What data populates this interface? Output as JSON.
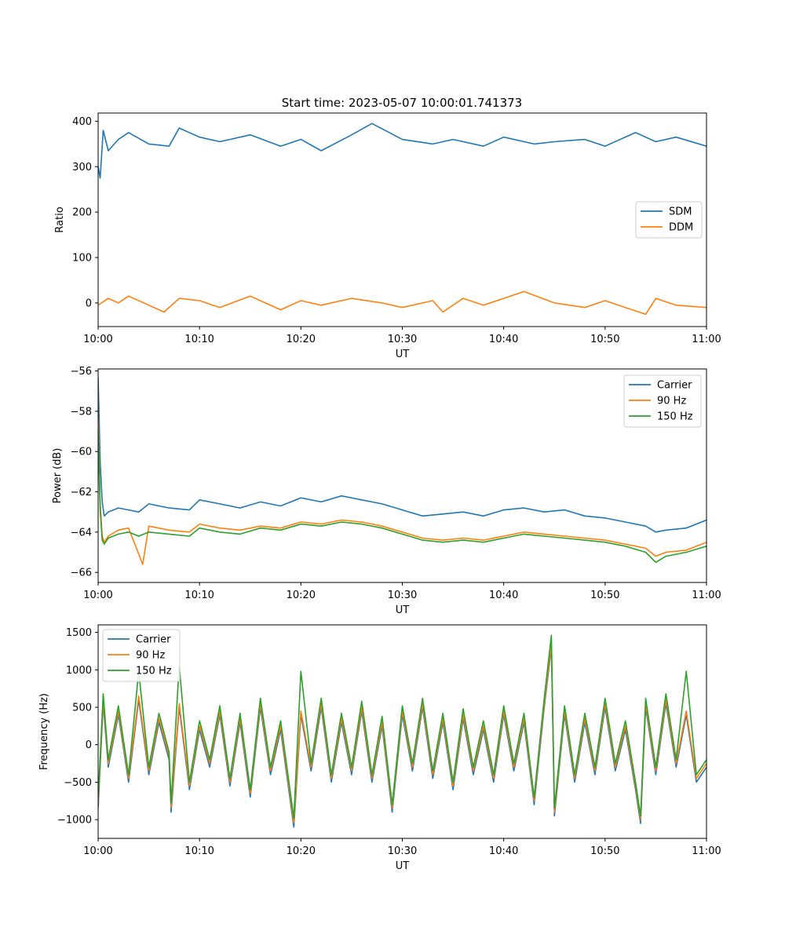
{
  "figure": {
    "title": "Start time: 2023-05-07 10:00:01.741373"
  },
  "chart_data": [
    {
      "type": "line",
      "title": "Start time: 2023-05-07 10:00:01.741373",
      "xlabel": "UT",
      "ylabel": "Ratio",
      "xlim": [
        "10:00",
        "11:00"
      ],
      "ylim": [
        -52,
        418
      ],
      "xticks": [
        "10:00",
        "10:10",
        "10:20",
        "10:30",
        "10:40",
        "10:50",
        "11:00"
      ],
      "yticks": [
        0,
        100,
        200,
        300,
        400
      ],
      "legend": "center-right",
      "grid": false,
      "series": [
        {
          "name": "SDM",
          "color": "#1f77b4",
          "x_minutes": [
            0,
            0.2,
            0.5,
            1,
            2,
            3,
            5,
            7,
            8,
            10,
            12,
            15,
            18,
            20,
            22,
            25,
            27,
            30,
            33,
            35,
            38,
            40,
            43,
            45,
            48,
            50,
            53,
            55,
            57,
            60
          ],
          "values": [
            300,
            275,
            380,
            335,
            360,
            375,
            350,
            345,
            385,
            365,
            355,
            370,
            345,
            360,
            335,
            370,
            395,
            360,
            350,
            360,
            345,
            365,
            350,
            355,
            360,
            345,
            375,
            355,
            365,
            345
          ]
        },
        {
          "name": "DDM",
          "color": "#ff7f0e",
          "x_minutes": [
            0,
            1,
            2,
            3,
            5,
            6.5,
            8,
            10,
            12,
            15,
            18,
            20,
            22,
            25,
            28,
            30,
            33,
            34,
            36,
            38,
            40,
            42,
            45,
            48,
            50,
            52,
            54,
            55,
            57,
            60
          ],
          "values": [
            -5,
            10,
            0,
            15,
            -5,
            -20,
            10,
            5,
            -10,
            15,
            -15,
            5,
            -5,
            10,
            0,
            -10,
            5,
            -20,
            10,
            -5,
            10,
            25,
            0,
            -10,
            5,
            -10,
            -25,
            10,
            -5,
            -10
          ]
        }
      ]
    },
    {
      "type": "line",
      "xlabel": "UT",
      "ylabel": "Power (dB)",
      "xlim": [
        "10:00",
        "11:00"
      ],
      "ylim": [
        -66.5,
        -55.9
      ],
      "xticks": [
        "10:00",
        "10:10",
        "10:20",
        "10:30",
        "10:40",
        "10:50",
        "11:00"
      ],
      "yticks": [
        -66,
        -64,
        -62,
        -60,
        -58,
        -56
      ],
      "legend": "top-right",
      "grid": false,
      "series": [
        {
          "name": "Carrier",
          "color": "#1f77b4",
          "x_minutes": [
            0,
            0.2,
            0.4,
            0.6,
            1,
            2,
            3,
            4,
            5,
            7,
            9,
            10,
            12,
            14,
            16,
            18,
            20,
            22,
            24,
            26,
            28,
            30,
            32,
            34,
            36,
            38,
            40,
            42,
            44,
            46,
            48,
            50,
            52,
            54,
            55,
            56,
            58,
            60
          ],
          "values": [
            -56.3,
            -60.5,
            -62.5,
            -63.2,
            -63.0,
            -62.8,
            -62.9,
            -63.0,
            -62.6,
            -62.8,
            -62.9,
            -62.4,
            -62.6,
            -62.8,
            -62.5,
            -62.7,
            -62.3,
            -62.5,
            -62.2,
            -62.4,
            -62.6,
            -62.9,
            -63.2,
            -63.1,
            -63.0,
            -63.2,
            -62.9,
            -62.8,
            -63.0,
            -62.9,
            -63.2,
            -63.3,
            -63.5,
            -63.7,
            -64.0,
            -63.9,
            -63.8,
            -63.4
          ]
        },
        {
          "name": "90 Hz",
          "color": "#ff7f0e",
          "x_minutes": [
            0,
            0.2,
            0.4,
            0.6,
            1,
            2,
            3,
            4.4,
            5,
            7,
            9,
            10,
            12,
            14,
            16,
            18,
            20,
            22,
            24,
            26,
            28,
            30,
            32,
            34,
            36,
            38,
            40,
            42,
            44,
            46,
            48,
            50,
            52,
            54,
            55,
            56,
            58,
            60
          ],
          "values": [
            -58.3,
            -62.5,
            -64.2,
            -64.5,
            -64.2,
            -63.9,
            -63.8,
            -65.6,
            -63.7,
            -63.9,
            -64.0,
            -63.6,
            -63.8,
            -63.9,
            -63.7,
            -63.8,
            -63.5,
            -63.6,
            -63.4,
            -63.5,
            -63.7,
            -64.0,
            -64.3,
            -64.4,
            -64.3,
            -64.4,
            -64.2,
            -64.0,
            -64.1,
            -64.2,
            -64.3,
            -64.4,
            -64.6,
            -64.8,
            -65.2,
            -65.0,
            -64.9,
            -64.5
          ]
        },
        {
          "name": "150 Hz",
          "color": "#2ca02c",
          "x_minutes": [
            0,
            0.2,
            0.4,
            0.6,
            1,
            2,
            3,
            4,
            5,
            7,
            9,
            10,
            12,
            14,
            16,
            18,
            20,
            22,
            24,
            26,
            28,
            30,
            32,
            34,
            36,
            38,
            40,
            42,
            44,
            46,
            48,
            50,
            52,
            54,
            55,
            56,
            58,
            60
          ],
          "values": [
            -59.0,
            -62.9,
            -64.4,
            -64.6,
            -64.3,
            -64.1,
            -64.0,
            -64.2,
            -64.0,
            -64.1,
            -64.2,
            -63.8,
            -64.0,
            -64.1,
            -63.8,
            -63.9,
            -63.6,
            -63.7,
            -63.5,
            -63.6,
            -63.8,
            -64.1,
            -64.4,
            -64.5,
            -64.4,
            -64.5,
            -64.3,
            -64.1,
            -64.2,
            -64.3,
            -64.4,
            -64.5,
            -64.7,
            -65.0,
            -65.5,
            -65.2,
            -65.0,
            -64.7
          ]
        }
      ]
    },
    {
      "type": "line",
      "xlabel": "UT",
      "ylabel": "Frequency (Hz)",
      "xlim": [
        "10:00",
        "11:00"
      ],
      "ylim": [
        -1250,
        1600
      ],
      "xticks": [
        "10:00",
        "10:10",
        "10:20",
        "10:30",
        "10:40",
        "10:50",
        "11:00"
      ],
      "yticks": [
        -1000,
        -500,
        0,
        500,
        1000,
        1500
      ],
      "legend": "top-left",
      "grid": false,
      "series": [
        {
          "name": "Carrier",
          "color": "#1f77b4",
          "x_minutes": [
            0,
            0.5,
            1,
            2,
            3,
            4,
            5,
            6,
            7,
            7.2,
            8,
            9,
            10,
            11,
            12,
            13,
            14,
            15,
            16,
            17,
            18,
            19.3,
            20,
            21,
            22,
            23,
            24,
            25,
            26,
            27,
            28,
            29,
            30,
            31,
            32,
            33,
            34,
            35,
            36,
            37,
            38,
            39,
            40,
            41,
            42,
            43,
            44,
            44.7,
            45,
            46,
            47,
            48,
            49,
            50,
            51,
            52,
            53,
            53.5,
            54,
            55,
            56,
            57,
            58,
            59,
            60
          ],
          "values": [
            -850,
            550,
            -300,
            400,
            -500,
            600,
            -400,
            300,
            -200,
            -900,
            500,
            -600,
            200,
            -300,
            400,
            -550,
            300,
            -700,
            500,
            -400,
            200,
            -1100,
            400,
            -350,
            500,
            -500,
            300,
            -400,
            450,
            -500,
            250,
            -900,
            400,
            -350,
            500,
            -450,
            300,
            -600,
            350,
            -400,
            200,
            -500,
            400,
            -350,
            300,
            -800,
            500,
            1300,
            -950,
            400,
            -500,
            300,
            -400,
            500,
            -350,
            200,
            -600,
            -1050,
            500,
            -400,
            550,
            -300,
            400,
            -500,
            -300
          ]
        },
        {
          "name": "90 Hz",
          "color": "#ff7f0e",
          "x_minutes": [
            0,
            0.5,
            1,
            2,
            3,
            4,
            5,
            6,
            7,
            7.2,
            8,
            9,
            10,
            11,
            12,
            13,
            14,
            15,
            16,
            17,
            18,
            19.3,
            20,
            21,
            22,
            23,
            24,
            25,
            26,
            27,
            28,
            29,
            30,
            31,
            32,
            33,
            34,
            35,
            36,
            37,
            38,
            39,
            40,
            41,
            42,
            43,
            44,
            44.7,
            45,
            46,
            47,
            48,
            49,
            50,
            51,
            52,
            53,
            53.5,
            54,
            55,
            56,
            57,
            58,
            59,
            60
          ],
          "values": [
            -780,
            600,
            -250,
            450,
            -450,
            650,
            -350,
            350,
            -150,
            -840,
            550,
            -550,
            250,
            -250,
            450,
            -500,
            350,
            -650,
            550,
            -350,
            250,
            -1040,
            450,
            -300,
            550,
            -450,
            350,
            -350,
            500,
            -450,
            300,
            -850,
            450,
            -300,
            550,
            -400,
            350,
            -550,
            400,
            -350,
            250,
            -450,
            450,
            -300,
            350,
            -750,
            550,
            1350,
            -900,
            450,
            -450,
            350,
            -350,
            550,
            -300,
            250,
            -550,
            -1000,
            550,
            -350,
            600,
            -250,
            450,
            -450,
            -250
          ]
        },
        {
          "name": "150 Hz",
          "color": "#2ca02c",
          "x_minutes": [
            0,
            0.5,
            1,
            2,
            3,
            4,
            5,
            6,
            7,
            7.2,
            8,
            9,
            10,
            11,
            12,
            13,
            14,
            15,
            16,
            17,
            18,
            19.3,
            20,
            21,
            22,
            23,
            24,
            25,
            26,
            27,
            28,
            29,
            30,
            31,
            32,
            33,
            34,
            35,
            36,
            37,
            38,
            39,
            40,
            41,
            42,
            43,
            44,
            44.7,
            45,
            46,
            47,
            48,
            49,
            50,
            51,
            52,
            53,
            53.5,
            54,
            55,
            56,
            57,
            58,
            59,
            60
          ],
          "values": [
            -720,
            680,
            -200,
            520,
            -400,
            980,
            -300,
            420,
            -100,
            -780,
            1060,
            -500,
            320,
            -200,
            520,
            -450,
            420,
            -600,
            620,
            -300,
            320,
            -980,
            980,
            -250,
            620,
            -400,
            420,
            -300,
            580,
            -400,
            380,
            -800,
            520,
            -250,
            620,
            -350,
            420,
            -500,
            480,
            -300,
            320,
            -400,
            520,
            -250,
            420,
            -700,
            620,
            1460,
            -850,
            520,
            -400,
            420,
            -300,
            620,
            -250,
            320,
            -500,
            -950,
            620,
            -300,
            680,
            -200,
            980,
            -400,
            -200
          ]
        }
      ]
    }
  ]
}
